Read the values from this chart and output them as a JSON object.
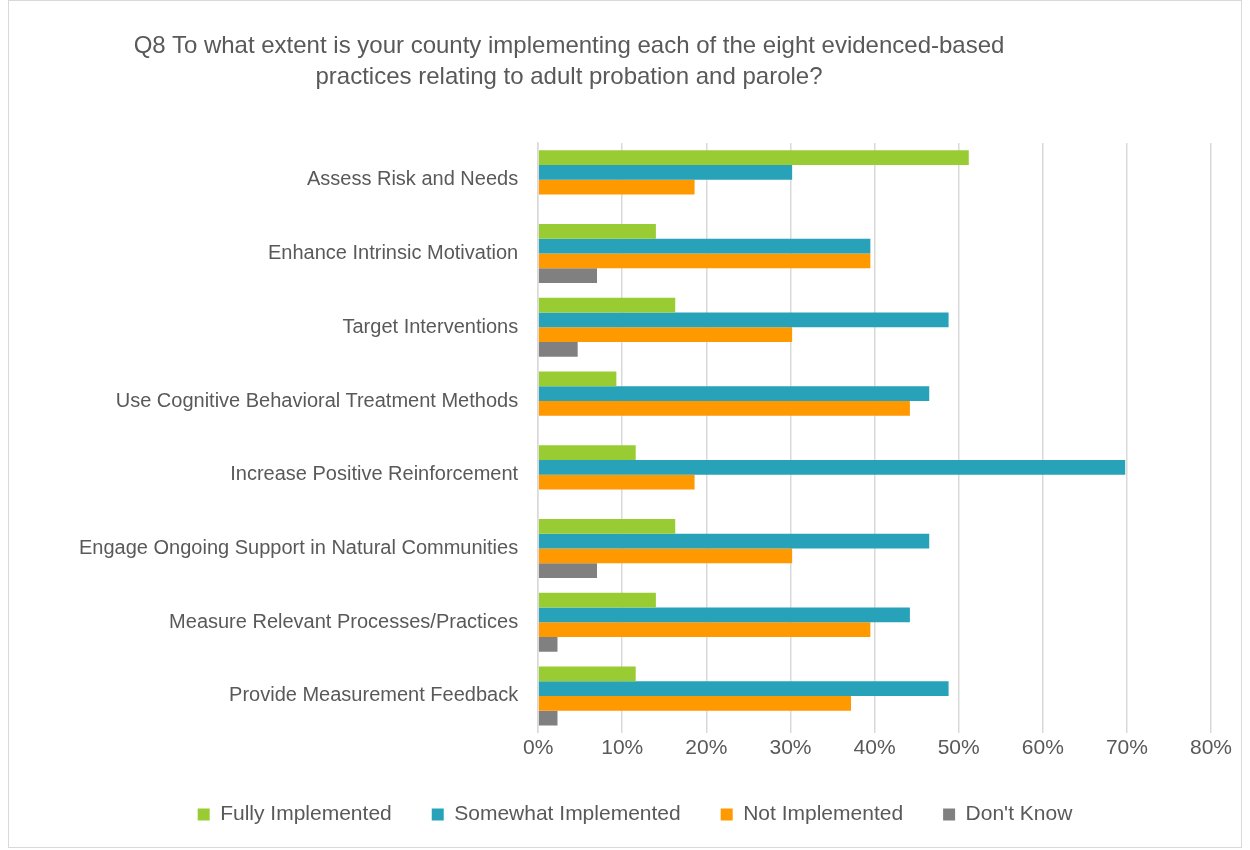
{
  "chart_data": {
    "type": "bar",
    "orientation": "horizontal",
    "title": "Q8 To what extent is your county implementing each of the eight evidenced-based practices relating to adult probation and parole?",
    "categories": [
      "Assess Risk and Needs",
      "Enhance Intrinsic Motivation",
      "Target Interventions",
      "Use Cognitive Behavioral Treatment Methods",
      "Increase Positive Reinforcement",
      "Engage Ongoing Support in Natural Communities",
      "Measure Relevant Processes/Practices",
      "Provide Measurement Feedback"
    ],
    "series": [
      {
        "name": "Fully Implemented",
        "color": "#99cc33",
        "values": [
          51.2,
          14.0,
          16.3,
          9.3,
          11.6,
          16.3,
          14.0,
          11.6
        ]
      },
      {
        "name": "Somewhat Implemented",
        "color": "#27a2b8",
        "values": [
          30.2,
          39.5,
          48.8,
          46.5,
          69.8,
          46.5,
          44.2,
          48.8
        ]
      },
      {
        "name": "Not Implemented",
        "color": "#ff9900",
        "values": [
          18.6,
          39.5,
          30.2,
          44.2,
          18.6,
          30.2,
          39.5,
          37.2
        ]
      },
      {
        "name": "Don't Know",
        "color": "#808080",
        "values": [
          null,
          7.0,
          4.7,
          null,
          null,
          7.0,
          2.3,
          2.3
        ]
      }
    ],
    "xlim": [
      0,
      80
    ],
    "xticks": [
      {
        "value": 0,
        "label": "0%"
      },
      {
        "value": 10,
        "label": "10%"
      },
      {
        "value": 20,
        "label": "20%"
      },
      {
        "value": 30,
        "label": "30%"
      },
      {
        "value": 40,
        "label": "40%"
      },
      {
        "value": 50,
        "label": "50%"
      },
      {
        "value": 60,
        "label": "60%"
      },
      {
        "value": 70,
        "label": "70%"
      },
      {
        "value": 80,
        "label": "80%"
      }
    ],
    "grid": "x",
    "legend": "bottom"
  }
}
